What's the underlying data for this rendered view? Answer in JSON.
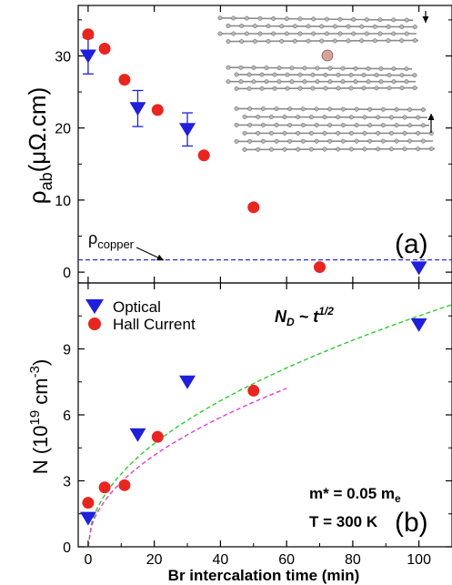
{
  "chart_data": [
    {
      "panel_label": "(a)",
      "type": "scatter",
      "ylabel": {
        "base": "ρ",
        "sub": "ab",
        "units": "(μΩ.cm)"
      },
      "ylim": [
        -1.5,
        37
      ],
      "xlim": [
        -3,
        110
      ],
      "yticks": [
        0,
        10,
        20,
        30
      ],
      "series": [
        {
          "name": "Optical",
          "marker": "triangle-down",
          "color": "#1f1fdc",
          "x": [
            0,
            15,
            30,
            100
          ],
          "y": [
            30,
            22.7,
            19.8,
            0.6
          ],
          "yerr": [
            2.5,
            2.5,
            2.3,
            0
          ]
        },
        {
          "name": "Hall Current",
          "marker": "circle",
          "color": "#e8261f",
          "x": [
            0,
            5,
            11,
            21,
            35,
            50,
            70
          ],
          "y": [
            33,
            31,
            26.7,
            22.5,
            16.2,
            9,
            0.7
          ]
        }
      ],
      "reference_line": {
        "label_base": "ρ",
        "label_sub": "copper",
        "y": 1.7,
        "color": "#2f2fd6"
      },
      "inset": {
        "description": "graphene layers with intercalated atom"
      }
    },
    {
      "panel_label": "(b)",
      "type": "scatter",
      "ylabel": {
        "text": "N (10",
        "exp1": "19",
        "mid": " cm",
        "exp2": "-3",
        "end": ")"
      },
      "xlabel": "Br intercalation time (min)",
      "xlim": [
        -3,
        110
      ],
      "ylim": [
        0,
        12
      ],
      "xticks": [
        0,
        20,
        40,
        60,
        80,
        100
      ],
      "yticks": [
        0,
        3,
        6,
        9
      ],
      "series": [
        {
          "name": "Optical",
          "marker": "triangle-down",
          "color": "#1f1fdc",
          "x": [
            0,
            15,
            30,
            100
          ],
          "y": [
            1.3,
            5.1,
            7.5,
            10.1
          ]
        },
        {
          "name": "Hall Current",
          "marker": "circle",
          "color": "#e8261f",
          "x": [
            0,
            5,
            11,
            21,
            50
          ],
          "y": [
            2.0,
            2.7,
            2.8,
            5.0,
            7.1
          ]
        }
      ],
      "fits": [
        {
          "color": "#2ecc2e",
          "coef": 1.05,
          "x_range": [
            0,
            110
          ]
        },
        {
          "color": "#e23fd0",
          "coef": 0.93,
          "x_range": [
            0,
            60
          ]
        }
      ],
      "annotations": {
        "law": {
          "n": "N",
          "sub": "D",
          "mid": " ~ ",
          "t": "t",
          "exp": "1/2"
        },
        "mass": {
          "text": "m* = 0.05 m",
          "sub": "e"
        },
        "temp": "T = 300 K"
      },
      "legend_position": "top-left"
    }
  ]
}
